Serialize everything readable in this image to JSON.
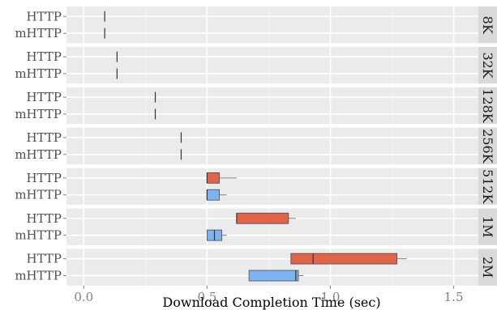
{
  "chart_data": {
    "type": "boxplot",
    "xlabel": "Download Completion Time (sec)",
    "xlim": [
      -0.07,
      1.6
    ],
    "x_ticks": [
      "0.0",
      "0.5",
      "1.0",
      "1.5"
    ],
    "x_tick_values": [
      0.0,
      0.5,
      1.0,
      1.5
    ],
    "grid": true,
    "colors": {
      "panel_bg": "#ebebeb",
      "strip_bg": "#d9d9d9",
      "grid_major": "#ffffff",
      "HTTP": "#e0634a",
      "mHTTP": "#7cb3f0",
      "line": "#4d4d4d"
    },
    "facets": [
      {
        "label": "8K",
        "rows": [
          {
            "name": "HTTP",
            "min": 0.085,
            "q1": 0.085,
            "median": 0.085,
            "q3": 0.085,
            "max": 0.085
          },
          {
            "name": "mHTTP",
            "min": 0.085,
            "q1": 0.085,
            "median": 0.085,
            "q3": 0.085,
            "max": 0.085
          }
        ]
      },
      {
        "label": "32K",
        "rows": [
          {
            "name": "HTTP",
            "min": 0.135,
            "q1": 0.135,
            "median": 0.135,
            "q3": 0.135,
            "max": 0.135
          },
          {
            "name": "mHTTP",
            "min": 0.135,
            "q1": 0.135,
            "median": 0.135,
            "q3": 0.135,
            "max": 0.135
          }
        ]
      },
      {
        "label": "128K",
        "rows": [
          {
            "name": "HTTP",
            "min": 0.29,
            "q1": 0.29,
            "median": 0.29,
            "q3": 0.29,
            "max": 0.29
          },
          {
            "name": "mHTTP",
            "min": 0.29,
            "q1": 0.29,
            "median": 0.29,
            "q3": 0.29,
            "max": 0.29
          }
        ]
      },
      {
        "label": "256K",
        "rows": [
          {
            "name": "HTTP",
            "min": 0.395,
            "q1": 0.395,
            "median": 0.395,
            "q3": 0.395,
            "max": 0.395
          },
          {
            "name": "mHTTP",
            "min": 0.395,
            "q1": 0.395,
            "median": 0.395,
            "q3": 0.395,
            "max": 0.395
          }
        ]
      },
      {
        "label": "512K",
        "rows": [
          {
            "name": "HTTP",
            "min": 0.5,
            "q1": 0.5,
            "median": 0.5,
            "q3": 0.55,
            "max": 0.62
          },
          {
            "name": "mHTTP",
            "min": 0.5,
            "q1": 0.5,
            "median": 0.5,
            "q3": 0.55,
            "max": 0.58
          }
        ]
      },
      {
        "label": "1M",
        "rows": [
          {
            "name": "HTTP",
            "min": 0.62,
            "q1": 0.62,
            "median": 0.62,
            "q3": 0.83,
            "max": 0.86
          },
          {
            "name": "mHTTP",
            "min": 0.5,
            "q1": 0.5,
            "median": 0.53,
            "q3": 0.56,
            "max": 0.58
          }
        ]
      },
      {
        "label": "2M",
        "rows": [
          {
            "name": "HTTP",
            "min": 0.84,
            "q1": 0.84,
            "median": 0.93,
            "q3": 1.27,
            "max": 1.31
          },
          {
            "name": "mHTTP",
            "min": 0.67,
            "q1": 0.67,
            "median": 0.86,
            "q3": 0.87,
            "max": 0.89
          }
        ]
      }
    ]
  }
}
